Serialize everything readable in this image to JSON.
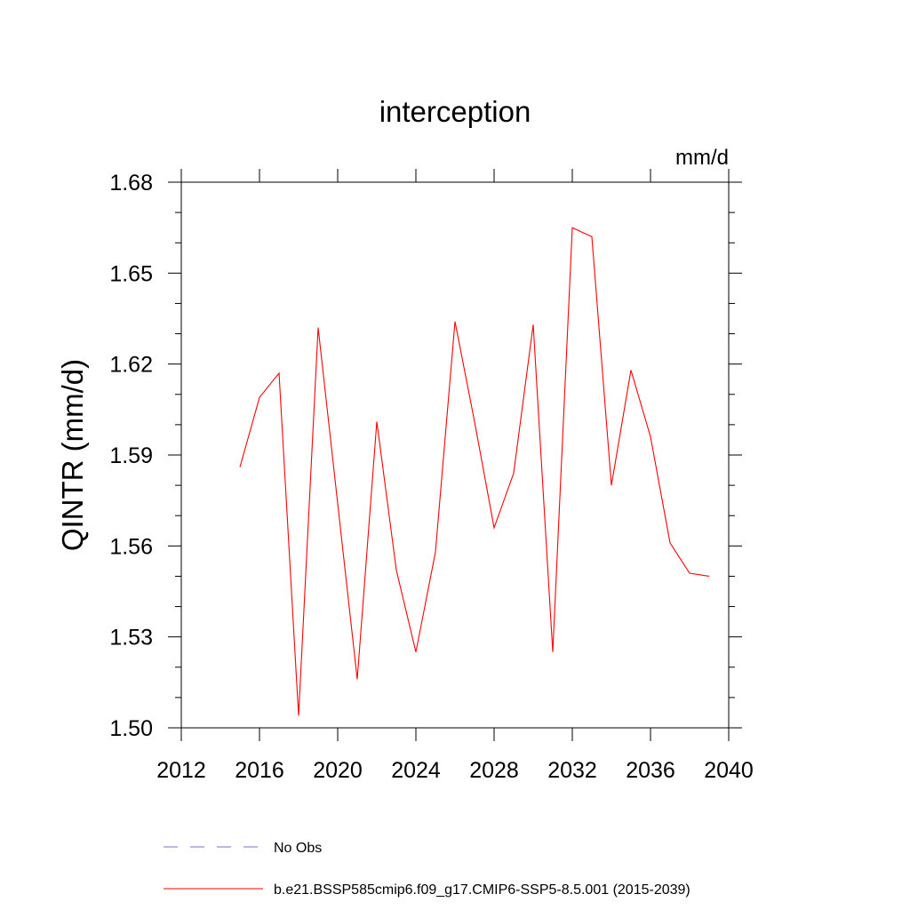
{
  "chart_data": {
    "type": "line",
    "title": "interception",
    "units": "mm/d",
    "ylabel": "QINTR  (mm/d)",
    "xlabel": "",
    "xlim": [
      2012,
      2040
    ],
    "ylim": [
      1.5,
      1.68
    ],
    "x_ticks": [
      2012,
      2016,
      2020,
      2024,
      2028,
      2032,
      2036,
      2040
    ],
    "x_tick_labels": [
      "2012",
      "2016",
      "2020",
      "2024",
      "2028",
      "2032",
      "2036",
      "2040"
    ],
    "y_ticks": [
      1.5,
      1.53,
      1.56,
      1.59,
      1.62,
      1.65,
      1.68
    ],
    "y_tick_labels": [
      "1.50",
      "1.53",
      "1.56",
      "1.59",
      "1.62",
      "1.65",
      "1.68"
    ],
    "grid": false,
    "legend_position": "bottom",
    "series": [
      {
        "name": "b.e21.BSSP585cmip6.f09_g17.CMIP6-SSP5-8.5.001 (2015-2039)",
        "color": "#ff0000",
        "style": "solid",
        "x": [
          2015,
          2016,
          2017,
          2018,
          2019,
          2020,
          2021,
          2022,
          2023,
          2024,
          2025,
          2026,
          2027,
          2028,
          2029,
          2030,
          2031,
          2032,
          2033,
          2034,
          2035,
          2036,
          2037,
          2038,
          2039
        ],
        "values": [
          1.586,
          1.609,
          1.617,
          1.504,
          1.632,
          1.574,
          1.516,
          1.601,
          1.552,
          1.525,
          1.558,
          1.634,
          1.601,
          1.566,
          1.584,
          1.633,
          1.525,
          1.665,
          1.662,
          1.58,
          1.618,
          1.596,
          1.561,
          1.551,
          1.55
        ]
      }
    ],
    "legend": [
      {
        "label": "No Obs",
        "color": "#7b6fd0",
        "style": "dashed"
      },
      {
        "label": "b.e21.BSSP585cmip6.f09_g17.CMIP6-SSP5-8.5.001 (2015-2039)",
        "color": "#ff0000",
        "style": "solid"
      }
    ]
  }
}
